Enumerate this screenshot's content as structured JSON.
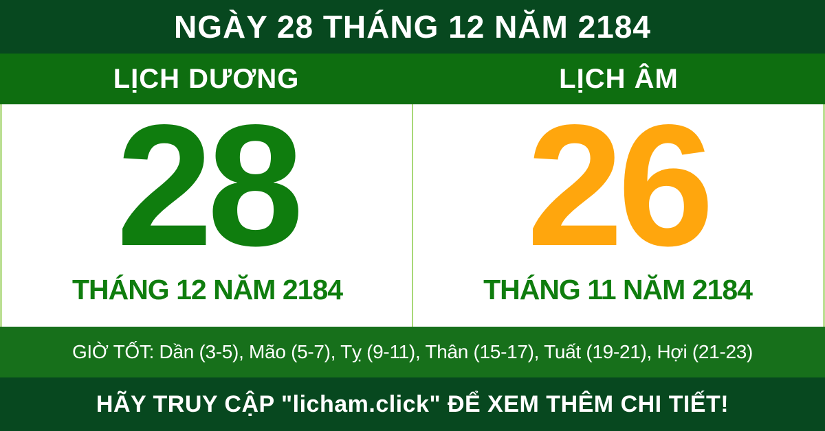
{
  "banner": {
    "title": "NGÀY 28 THÁNG 12 NĂM 2184",
    "solar": {
      "header": "LỊCH DƯƠNG",
      "day": "28",
      "month_year": "THÁNG 12 NĂM 2184"
    },
    "lunar": {
      "header": "LỊCH ÂM",
      "day": "26",
      "month_year": "THÁNG 11 NĂM 2184"
    },
    "good_hours": "GIỜ TỐT: Dần (3-5), Mão (5-7), Tỵ (9-11), Thân (15-17), Tuất (19-21), Hợi (21-23)",
    "footer": "HÃY TRUY CẬP \"licham.click\" ĐỂ XEM THÊM CHI TIẾT!",
    "colors": {
      "dark_green_bar": "#07481f",
      "medium_green_header": "#0e6e10",
      "hours_bar_green": "#17701b",
      "solar_number_green": "#0f7d0e",
      "lunar_number_orange": "#ffa60d",
      "divider_light_green": "#a8d878",
      "text_white": "#ffffff",
      "background_white": "#ffffff"
    }
  }
}
